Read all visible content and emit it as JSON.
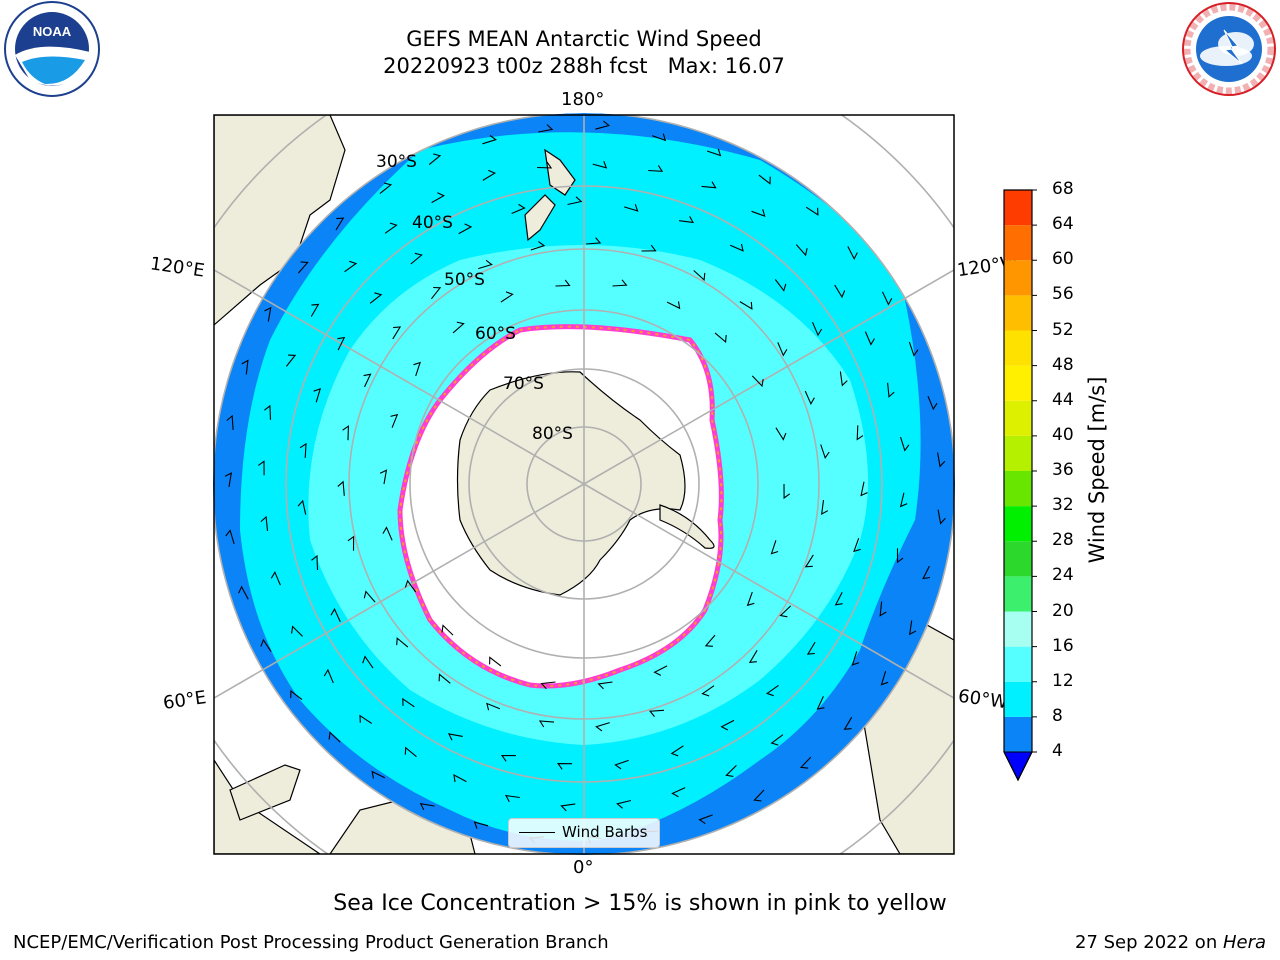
{
  "header": {
    "title_line1": "GEFS MEAN Antarctic Wind Speed",
    "title_line2": "20220923 t00z 288h fcst   Max: 16.07"
  },
  "logos": {
    "left": "NOAA",
    "left_ring_text": "NATIONAL OCEANIC AND ATMOSPHERIC ADMINISTRATION · U.S. DEPARTMENT OF COMMERCE",
    "right_ring_text": "NATIONAL WEATHER SERVICE"
  },
  "map": {
    "projection": "south-polar-stereographic",
    "longitude_labels": {
      "top": "180°",
      "bottom": "0°",
      "left_upper": "120°E",
      "left_lower": "60°E",
      "right_upper": "120°W",
      "right_lower": "60°W"
    },
    "latitude_labels": [
      "30°S",
      "40°S",
      "50°S",
      "60°S",
      "70°S",
      "80°S"
    ],
    "legend": {
      "label": "Wind Barbs"
    },
    "colors": {
      "land": "#eeecdb",
      "ocean_low": "#0a84f7",
      "ocean_mid": "#00f0ff",
      "ocean_high": "#5affff",
      "sea_ice": "#ff3dcf",
      "grid": "#b0b0b0"
    }
  },
  "colorbar": {
    "label": "Wind Speed [m/s]",
    "ticks": [
      "4",
      "8",
      "12",
      "16",
      "20",
      "24",
      "28",
      "32",
      "36",
      "40",
      "44",
      "48",
      "52",
      "56",
      "60",
      "64",
      "68"
    ],
    "colors": [
      "#0a84f7",
      "#00f0ff",
      "#55ffff",
      "#a6fff0",
      "#3cf06e",
      "#2cd82c",
      "#00f000",
      "#69e600",
      "#b4f000",
      "#dcf000",
      "#fff000",
      "#ffe100",
      "#ffbe00",
      "#ff9600",
      "#ff6e00",
      "#ff3c00"
    ],
    "extend_color": "#0000ff"
  },
  "footer": {
    "note": "Sea Ice Concentration > 15% is shown in pink to yellow",
    "left": "NCEP/EMC/Verification Post Processing Product Generation Branch",
    "right_prefix": "27 Sep 2022 on ",
    "right_host": "Hera"
  }
}
